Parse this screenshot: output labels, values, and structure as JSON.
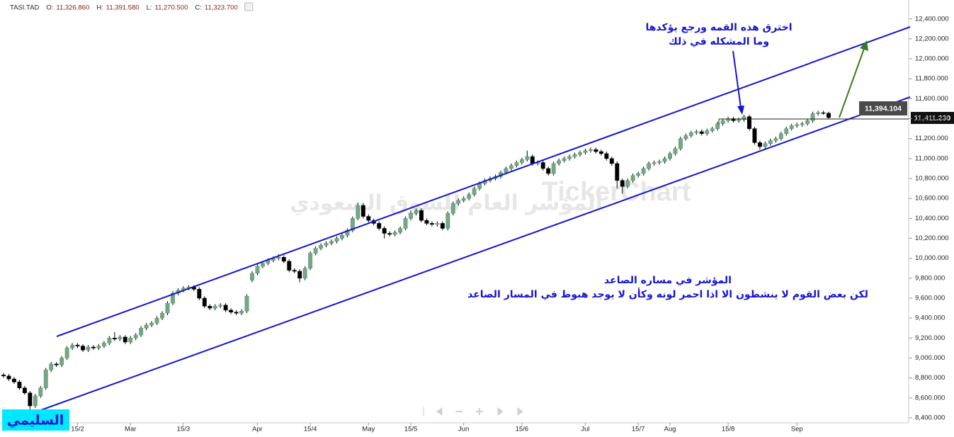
{
  "chart_data": {
    "type": "candlestick",
    "header": {
      "symbol": "TASI.TAD",
      "open_label": "O:",
      "open": "11,326.860",
      "high_label": "H:",
      "high": "11,391.580",
      "low_label": "L:",
      "low": "11,270.500",
      "close_label": "C:",
      "close": "11,323.700"
    },
    "watermark": {
      "brand": "TickerChart",
      "name": "المؤشر العام للسوق السعودي"
    },
    "annotations": {
      "breakout": [
        "اخترق هذه القمه ورجع يؤكدها",
        "وما المشكله في ذلك"
      ],
      "trend": [
        "المؤشر في مساره الصاعد",
        "لكن بعض القوم لا ينشطون الا اذا احمر لونه وكأن لا يوجد هبوط في المسار الصاعد"
      ],
      "signature": "السليمي",
      "line_price": "11,394.104",
      "last_price": "11,411.230"
    },
    "up_color": "#74a884",
    "down_color": "#000000",
    "ylim": [
      8350,
      12590
    ],
    "yticks": [
      {
        "value": 8400,
        "label": "8,400.000"
      },
      {
        "value": 8600,
        "label": "8,600.000"
      },
      {
        "value": 8800,
        "label": "8,800.000"
      },
      {
        "value": 9000,
        "label": "9,000.000"
      },
      {
        "value": 9200,
        "label": "9,200.000"
      },
      {
        "value": 9400,
        "label": "9,400.000"
      },
      {
        "value": 9600,
        "label": "9,600.000"
      },
      {
        "value": 9800,
        "label": "9,800.000"
      },
      {
        "value": 10000,
        "label": "10,000.000"
      },
      {
        "value": 10200,
        "label": "10,200.000"
      },
      {
        "value": 10400,
        "label": "10,400.000"
      },
      {
        "value": 10600,
        "label": "10,600.000"
      },
      {
        "value": 10800,
        "label": "10,800.000"
      },
      {
        "value": 11000,
        "label": "11,000.000"
      },
      {
        "value": 11200,
        "label": "11,200.000"
      },
      {
        "value": 11400,
        "label": "11,400.000"
      },
      {
        "value": 11600,
        "label": "11,600.000"
      },
      {
        "value": 11800,
        "label": "11,800.000"
      },
      {
        "value": 12000,
        "label": "12,000.000"
      },
      {
        "value": 12200,
        "label": "12,200.000"
      },
      {
        "value": 12400,
        "label": "12,400.000"
      }
    ],
    "categories": [
      null,
      null,
      null,
      null,
      null,
      null,
      null,
      null,
      null,
      null,
      null,
      null,
      null,
      null,
      "15/2",
      null,
      null,
      null,
      null,
      null,
      null,
      null,
      null,
      null,
      "Mar",
      null,
      null,
      null,
      null,
      null,
      null,
      null,
      null,
      null,
      "15/3",
      null,
      null,
      null,
      null,
      null,
      null,
      null,
      null,
      null,
      null,
      null,
      null,
      null,
      "Apr",
      null,
      null,
      null,
      null,
      null,
      null,
      null,
      null,
      null,
      "15/4",
      null,
      null,
      null,
      null,
      null,
      null,
      null,
      null,
      null,
      null,
      "May",
      null,
      null,
      null,
      null,
      null,
      null,
      null,
      "15/5",
      null,
      null,
      null,
      null,
      null,
      null,
      null,
      null,
      null,
      "Jun",
      null,
      null,
      null,
      null,
      null,
      null,
      null,
      null,
      null,
      null,
      "15/6",
      null,
      null,
      null,
      null,
      null,
      null,
      null,
      null,
      null,
      null,
      null,
      "Jul",
      null,
      null,
      null,
      null,
      null,
      null,
      null,
      null,
      null,
      "15/7",
      null,
      null,
      null,
      null,
      null,
      "Aug",
      null,
      null,
      null,
      null,
      null,
      null,
      null,
      null,
      null,
      null,
      "15/8",
      null,
      null,
      null,
      null,
      null,
      null,
      null,
      null,
      null,
      null,
      null,
      null,
      "Sep",
      null,
      null,
      null,
      null,
      null,
      null
    ],
    "ohlc": [
      [
        8830,
        8850,
        8800,
        8820
      ],
      [
        8820,
        8840,
        8770,
        8790
      ],
      [
        8790,
        8810,
        8740,
        8760
      ],
      [
        8760,
        8780,
        8680,
        8700
      ],
      [
        8700,
        8720,
        8630,
        8650
      ],
      [
        8650,
        8670,
        8480,
        8520
      ],
      [
        8520,
        8640,
        8500,
        8620
      ],
      [
        8620,
        8720,
        8600,
        8700
      ],
      [
        8700,
        8900,
        8680,
        8880
      ],
      [
        8880,
        8960,
        8860,
        8940
      ],
      [
        8940,
        8960,
        8910,
        8930
      ],
      [
        8930,
        9020,
        8910,
        9000
      ],
      [
        9000,
        9120,
        8980,
        9100
      ],
      [
        9100,
        9150,
        9080,
        9130
      ],
      [
        9130,
        9150,
        9100,
        9120
      ],
      [
        9120,
        9140,
        9060,
        9080
      ],
      [
        9080,
        9130,
        9060,
        9110
      ],
      [
        9110,
        9130,
        9080,
        9100
      ],
      [
        9100,
        9140,
        9080,
        9120
      ],
      [
        9120,
        9170,
        9100,
        9150
      ],
      [
        9150,
        9220,
        9130,
        9200
      ],
      [
        9200,
        9260,
        9170,
        9190
      ],
      [
        9190,
        9230,
        9170,
        9210
      ],
      [
        9210,
        9230,
        9140,
        9160
      ],
      [
        9160,
        9220,
        9140,
        9200
      ],
      [
        9200,
        9250,
        9180,
        9230
      ],
      [
        9230,
        9320,
        9210,
        9300
      ],
      [
        9300,
        9350,
        9280,
        9330
      ],
      [
        9330,
        9370,
        9310,
        9350
      ],
      [
        9350,
        9420,
        9330,
        9400
      ],
      [
        9400,
        9470,
        9380,
        9450
      ],
      [
        9450,
        9570,
        9430,
        9550
      ],
      [
        9550,
        9670,
        9530,
        9650
      ],
      [
        9650,
        9700,
        9630,
        9680
      ],
      [
        9680,
        9720,
        9660,
        9700
      ],
      [
        9700,
        9730,
        9680,
        9710
      ],
      [
        9710,
        9730,
        9670,
        9690
      ],
      [
        9690,
        9710,
        9580,
        9600
      ],
      [
        9600,
        9620,
        9500,
        9520
      ],
      [
        9520,
        9540,
        9480,
        9500
      ],
      [
        9500,
        9540,
        9480,
        9520
      ],
      [
        9520,
        9550,
        9500,
        9530
      ],
      [
        9530,
        9550,
        9460,
        9480
      ],
      [
        9480,
        9500,
        9440,
        9460
      ],
      [
        9460,
        9480,
        9430,
        9450
      ],
      [
        9450,
        9490,
        9430,
        9470
      ],
      [
        9470,
        9640,
        9450,
        9620
      ],
      [
        9780,
        9870,
        9760,
        9850
      ],
      [
        9850,
        9940,
        9830,
        9920
      ],
      [
        9920,
        9970,
        9900,
        9950
      ],
      [
        9950,
        10000,
        9930,
        9980
      ],
      [
        9980,
        10020,
        9960,
        10000
      ],
      [
        10000,
        10040,
        9980,
        10010
      ],
      [
        10010,
        10030,
        9950,
        9970
      ],
      [
        9970,
        9990,
        9860,
        9880
      ],
      [
        9880,
        9900,
        9850,
        9870
      ],
      [
        9870,
        9890,
        9760,
        9800
      ],
      [
        9800,
        9920,
        9780,
        9900
      ],
      [
        9900,
        10070,
        9880,
        10050
      ],
      [
        10050,
        10120,
        10030,
        10100
      ],
      [
        10100,
        10150,
        10080,
        10130
      ],
      [
        10130,
        10170,
        10110,
        10150
      ],
      [
        10150,
        10190,
        10130,
        10170
      ],
      [
        10170,
        10220,
        10150,
        10200
      ],
      [
        10200,
        10250,
        10180,
        10230
      ],
      [
        10230,
        10300,
        10210,
        10280
      ],
      [
        10280,
        10420,
        10260,
        10400
      ],
      [
        10400,
        10560,
        10380,
        10530
      ],
      [
        10530,
        10550,
        10400,
        10420
      ],
      [
        10420,
        10440,
        10360,
        10380
      ],
      [
        10380,
        10400,
        10330,
        10350
      ],
      [
        10350,
        10370,
        10280,
        10300
      ],
      [
        10300,
        10320,
        10200,
        10250
      ],
      [
        10250,
        10270,
        10220,
        10240
      ],
      [
        10240,
        10280,
        10220,
        10260
      ],
      [
        10260,
        10320,
        10240,
        10300
      ],
      [
        10300,
        10420,
        10280,
        10400
      ],
      [
        10400,
        10480,
        10380,
        10450
      ],
      [
        10450,
        10500,
        10430,
        10480
      ],
      [
        10480,
        10500,
        10360,
        10380
      ],
      [
        10380,
        10400,
        10330,
        10350
      ],
      [
        10350,
        10370,
        10320,
        10340
      ],
      [
        10340,
        10370,
        10320,
        10350
      ],
      [
        10350,
        10370,
        10280,
        10300
      ],
      [
        10300,
        10470,
        10280,
        10450
      ],
      [
        10450,
        10570,
        10430,
        10550
      ],
      [
        10550,
        10600,
        10530,
        10580
      ],
      [
        10580,
        10620,
        10560,
        10600
      ],
      [
        10600,
        10660,
        10580,
        10640
      ],
      [
        10640,
        10720,
        10620,
        10700
      ],
      [
        10700,
        10770,
        10680,
        10750
      ],
      [
        10750,
        10800,
        10730,
        10780
      ],
      [
        10780,
        10820,
        10760,
        10800
      ],
      [
        10800,
        10840,
        10780,
        10820
      ],
      [
        10820,
        10880,
        10800,
        10860
      ],
      [
        10860,
        10920,
        10840,
        10900
      ],
      [
        10900,
        10950,
        10880,
        10930
      ],
      [
        10930,
        10980,
        10910,
        10960
      ],
      [
        10960,
        11010,
        10940,
        10990
      ],
      [
        10990,
        11080,
        10970,
        11020
      ],
      [
        11020,
        11040,
        10930,
        10950
      ],
      [
        10950,
        10980,
        10930,
        10960
      ],
      [
        10960,
        10980,
        10880,
        10900
      ],
      [
        10900,
        10920,
        10830,
        10850
      ],
      [
        10850,
        10970,
        10830,
        10950
      ],
      [
        10950,
        11000,
        10930,
        10980
      ],
      [
        10980,
        11020,
        10960,
        11000
      ],
      [
        11000,
        11040,
        10980,
        11020
      ],
      [
        11020,
        11060,
        11000,
        11040
      ],
      [
        11040,
        11080,
        11020,
        11060
      ],
      [
        11060,
        11100,
        11040,
        11080
      ],
      [
        11080,
        11110,
        11060,
        11090
      ],
      [
        11090,
        11110,
        11050,
        11070
      ],
      [
        11070,
        11090,
        11030,
        11050
      ],
      [
        11050,
        11070,
        10980,
        11000
      ],
      [
        11000,
        11020,
        10930,
        10950
      ],
      [
        10950,
        10970,
        10700,
        10780
      ],
      [
        10780,
        10800,
        10650,
        10720
      ],
      [
        10720,
        10800,
        10700,
        10780
      ],
      [
        10780,
        10850,
        10760,
        10830
      ],
      [
        10830,
        10870,
        10810,
        10850
      ],
      [
        10850,
        10920,
        10830,
        10900
      ],
      [
        10900,
        10970,
        10880,
        10950
      ],
      [
        10950,
        10980,
        10930,
        10960
      ],
      [
        10960,
        10990,
        10940,
        10970
      ],
      [
        10970,
        11020,
        10950,
        11000
      ],
      [
        11000,
        11070,
        10980,
        11050
      ],
      [
        11050,
        11120,
        11030,
        11100
      ],
      [
        11100,
        11220,
        11080,
        11200
      ],
      [
        11200,
        11250,
        11180,
        11230
      ],
      [
        11230,
        11280,
        11210,
        11260
      ],
      [
        11260,
        11290,
        11240,
        11270
      ],
      [
        11270,
        11290,
        11230,
        11250
      ],
      [
        11250,
        11300,
        11230,
        11280
      ],
      [
        11280,
        11320,
        11260,
        11300
      ],
      [
        11300,
        11370,
        11280,
        11350
      ],
      [
        11350,
        11400,
        11330,
        11380
      ],
      [
        11380,
        11420,
        11360,
        11400
      ],
      [
        11400,
        11420,
        11360,
        11380
      ],
      [
        11380,
        11410,
        11360,
        11390
      ],
      [
        11390,
        11440,
        11370,
        11420
      ],
      [
        11420,
        11440,
        11280,
        11300
      ],
      [
        11300,
        11320,
        11140,
        11160
      ],
      [
        11160,
        11180,
        11090,
        11120
      ],
      [
        11120,
        11170,
        11100,
        11150
      ],
      [
        11150,
        11200,
        11130,
        11180
      ],
      [
        11180,
        11220,
        11160,
        11200
      ],
      [
        11200,
        11270,
        11180,
        11250
      ],
      [
        11250,
        11320,
        11230,
        11300
      ],
      [
        11300,
        11350,
        11280,
        11330
      ],
      [
        11330,
        11360,
        11310,
        11340
      ],
      [
        11340,
        11370,
        11320,
        11350
      ],
      [
        11350,
        11400,
        11330,
        11380
      ],
      [
        11380,
        11470,
        11360,
        11450
      ],
      [
        11450,
        11480,
        11430,
        11460
      ],
      [
        11460,
        11480,
        11440,
        11455
      ],
      [
        11455,
        11470,
        11400,
        11411.23
      ]
    ]
  }
}
